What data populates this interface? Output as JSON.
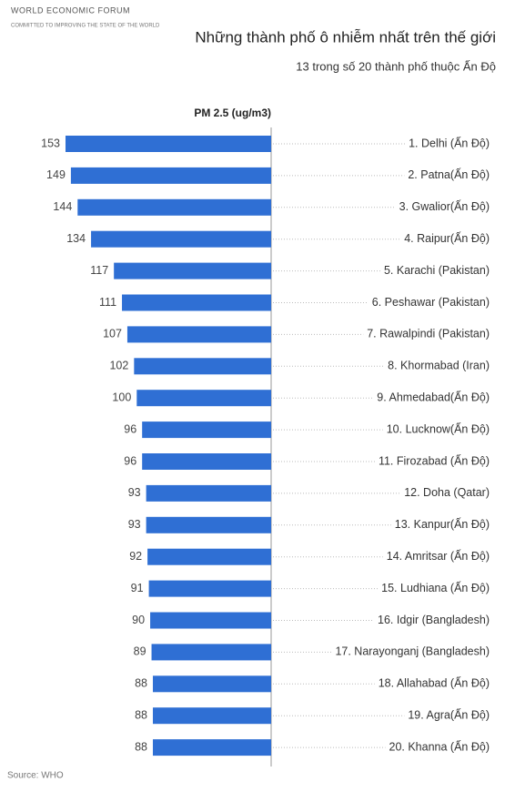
{
  "logo": {
    "name": "WORLD ECONOMIC FORUM",
    "tagline": "COMMITTED TO IMPROVING THE STATE OF THE WORLD"
  },
  "chart_data": {
    "type": "bar",
    "orientation": "horizontal",
    "title": "Những thành phố ô nhiễm nhất trên thế giới",
    "subtitle": "13 trong số 20 thành phố thuộc Ấn Độ",
    "value_label": "PM 2.5 (ug/m3)",
    "color": "#2f6fd4",
    "categories": [
      "1. Delhi (Ấn Độ)",
      "2. Patna(Ấn Độ)",
      "3. Gwalior(Ấn Độ)",
      "4. Raipur(Ấn Độ)",
      "5. Karachi (Pakistan)",
      "6. Peshawar (Pakistan)",
      "7. Rawalpindi (Pakistan)",
      "8. Khormabad (Iran)",
      "9. Ahmedabad(Ấn Độ)",
      "10. Lucknow(Ấn Độ)",
      "11. Firozabad (Ấn Độ)",
      "12. Doha (Qatar)",
      "13. Kanpur(Ấn Độ)",
      "14. Amritsar (Ấn Độ)",
      "15. Ludhiana (Ấn Độ)",
      "16. Idgir (Bangladesh)",
      "17. Narayonganj (Bangladesh)",
      "18. Allahabad (Ấn Độ)",
      "19. Agra(Ấn Độ)",
      "20. Khanna (Ấn Độ)"
    ],
    "values": [
      153,
      149,
      144,
      134,
      117,
      111,
      107,
      102,
      100,
      96,
      96,
      93,
      93,
      92,
      91,
      90,
      89,
      88,
      88,
      88
    ],
    "source": "Source: WHO"
  }
}
